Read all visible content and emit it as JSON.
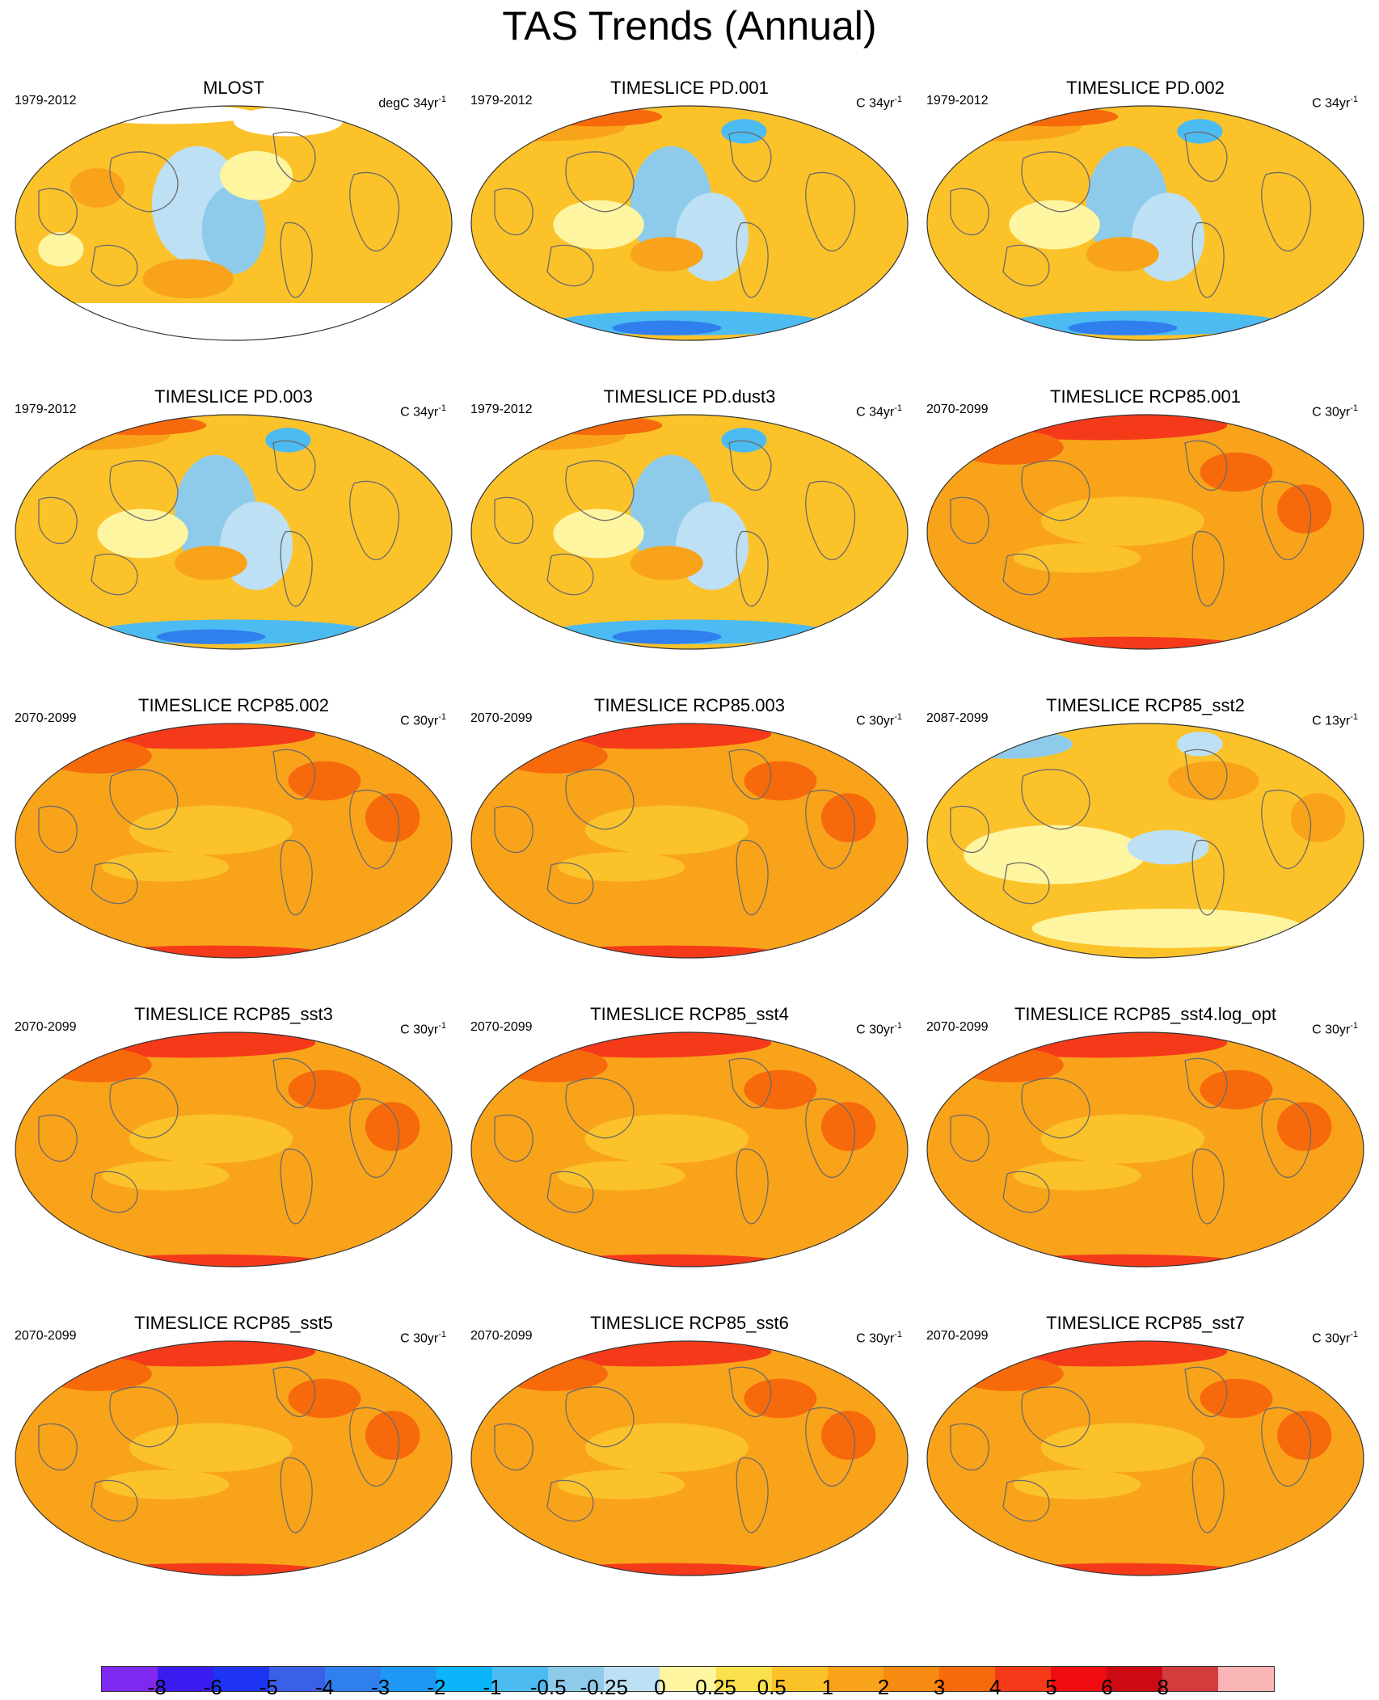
{
  "title": "TAS Trends (Annual)",
  "panels": [
    {
      "title": "MLOST",
      "period": "1979-2012",
      "units_prefix": "degC 34yr",
      "units_sup": "-1",
      "theme": "obs"
    },
    {
      "title": "TIMESLICE PD.001",
      "period": "1979-2012",
      "units_prefix": "C 34yr",
      "units_sup": "-1",
      "theme": "pd"
    },
    {
      "title": "TIMESLICE PD.002",
      "period": "1979-2012",
      "units_prefix": "C 34yr",
      "units_sup": "-1",
      "theme": "pd"
    },
    {
      "title": "TIMESLICE PD.003",
      "period": "1979-2012",
      "units_prefix": "C 34yr",
      "units_sup": "-1",
      "theme": "pd"
    },
    {
      "title": "TIMESLICE PD.dust3",
      "period": "1979-2012",
      "units_prefix": "C 34yr",
      "units_sup": "-1",
      "theme": "pd"
    },
    {
      "title": "TIMESLICE RCP85.001",
      "period": "2070-2099",
      "units_prefix": "C 30yr",
      "units_sup": "-1",
      "theme": "rcp"
    },
    {
      "title": "TIMESLICE RCP85.002",
      "period": "2070-2099",
      "units_prefix": "C 30yr",
      "units_sup": "-1",
      "theme": "rcp"
    },
    {
      "title": "TIMESLICE RCP85.003",
      "period": "2070-2099",
      "units_prefix": "C 30yr",
      "units_sup": "-1",
      "theme": "rcp"
    },
    {
      "title": "TIMESLICE RCP85_sst2",
      "period": "2087-2099",
      "units_prefix": "C 13yr",
      "units_sup": "-1",
      "theme": "sst2"
    },
    {
      "title": "TIMESLICE RCP85_sst3",
      "period": "2070-2099",
      "units_prefix": "C 30yr",
      "units_sup": "-1",
      "theme": "rcp"
    },
    {
      "title": "TIMESLICE RCP85_sst4",
      "period": "2070-2099",
      "units_prefix": "C 30yr",
      "units_sup": "-1",
      "theme": "rcp"
    },
    {
      "title": "TIMESLICE RCP85_sst4.log_opt",
      "period": "2070-2099",
      "units_prefix": "C 30yr",
      "units_sup": "-1",
      "theme": "rcp"
    },
    {
      "title": "TIMESLICE RCP85_sst5",
      "period": "2070-2099",
      "units_prefix": "C 30yr",
      "units_sup": "-1",
      "theme": "rcp"
    },
    {
      "title": "TIMESLICE RCP85_sst6",
      "period": "2070-2099",
      "units_prefix": "C 30yr",
      "units_sup": "-1",
      "theme": "rcp"
    },
    {
      "title": "TIMESLICE RCP85_sst7",
      "period": "2070-2099",
      "units_prefix": "C 30yr",
      "units_sup": "-1",
      "theme": "rcp"
    }
  ],
  "colorbar": {
    "colors": [
      "#7f28f0",
      "#3a1cf0",
      "#1d35f2",
      "#3a60e8",
      "#2f7fef",
      "#1f97f5",
      "#0ab4fa",
      "#4cbbf2",
      "#8ecbea",
      "#bde0f5",
      "#fdf5a0",
      "#fbe04d",
      "#fbc22a",
      "#f9a31b",
      "#f78a10",
      "#f76a0c",
      "#f53a1a",
      "#f00d12",
      "#cc0a14",
      "#d23c3c",
      "#f9b5b5"
    ],
    "labels": [
      "-8",
      "-6",
      "-5",
      "-4",
      "-3",
      "-2",
      "-1",
      "-0.5",
      "-0.25",
      "0",
      "0.25",
      "0.5",
      "1",
      "2",
      "3",
      "4",
      "5",
      "6",
      "8"
    ]
  }
}
